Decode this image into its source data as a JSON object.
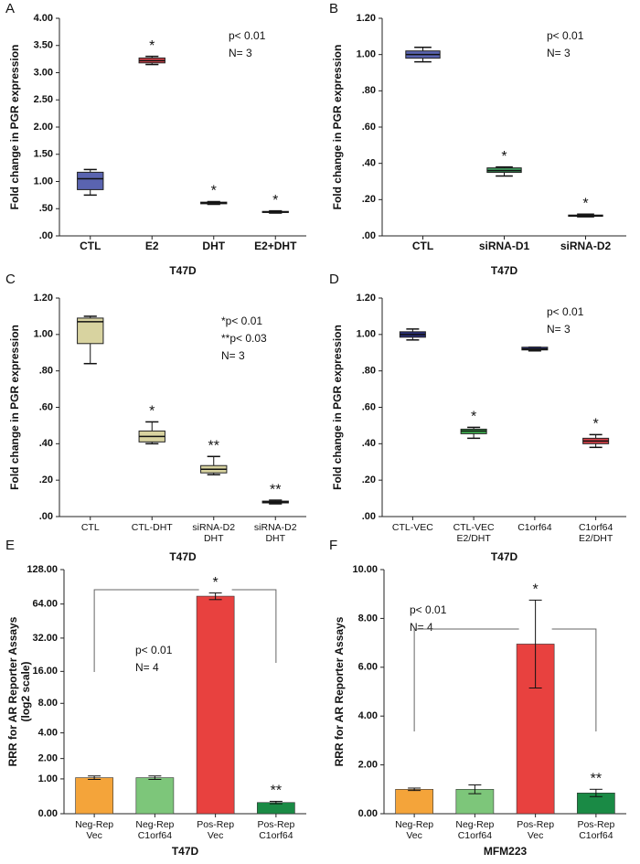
{
  "chart_data": [
    {
      "type": "box",
      "label": "A",
      "xlabel": "T47D",
      "ylabel": [
        "Fold change in PGR expression"
      ],
      "categories": [
        [
          "CTL"
        ],
        [
          "E2"
        ],
        [
          "DHT"
        ],
        [
          "E2+DHT"
        ]
      ],
      "boxes": [
        {
          "whislo": 0.75,
          "q1": 0.85,
          "med": 1.05,
          "q3": 1.17,
          "whishi": 1.22
        },
        {
          "whislo": 3.15,
          "q1": 3.18,
          "med": 3.22,
          "q3": 3.27,
          "whishi": 3.3
        },
        {
          "whislo": 0.58,
          "q1": 0.59,
          "med": 0.61,
          "q3": 0.62,
          "whishi": 0.63
        },
        {
          "whislo": 0.42,
          "q1": 0.43,
          "med": 0.44,
          "q3": 0.45,
          "whishi": 0.46
        }
      ],
      "colors": [
        "#5a64b0",
        "#d6424a",
        "#3f9a5e",
        "#333333"
      ],
      "significance": [
        null,
        "*",
        "*",
        "*"
      ],
      "annotations": [
        "p< 0.01",
        "N= 3"
      ],
      "ylim": [
        0,
        4
      ],
      "yticks": [
        {
          "value": 0,
          "label": ".00"
        },
        {
          "value": 0.5,
          "label": ".50"
        },
        {
          "value": 1,
          "label": "1.00"
        },
        {
          "value": 1.5,
          "label": "1.50"
        },
        {
          "value": 2,
          "label": "2.00"
        },
        {
          "value": 2.5,
          "label": "2.50"
        },
        {
          "value": 3,
          "label": "3.00"
        },
        {
          "value": 3.5,
          "label": "3.50"
        },
        {
          "value": 4,
          "label": "4.00"
        }
      ]
    },
    {
      "type": "box",
      "label": "B",
      "xlabel": "T47D",
      "ylabel": [
        "Fold change in PGR expression"
      ],
      "categories": [
        [
          "CTL"
        ],
        [
          "siRNA-D1"
        ],
        [
          "siRNA-D2"
        ]
      ],
      "boxes": [
        {
          "whislo": 0.96,
          "q1": 0.98,
          "med": 1.0,
          "q3": 1.02,
          "whishi": 1.04
        },
        {
          "whislo": 0.33,
          "q1": 0.35,
          "med": 0.36,
          "q3": 0.375,
          "whishi": 0.38
        },
        {
          "whislo": 0.105,
          "q1": 0.108,
          "med": 0.11,
          "q3": 0.115,
          "whishi": 0.12
        }
      ],
      "colors": [
        "#5a64b0",
        "#3f9a5e",
        "#333333"
      ],
      "significance": [
        null,
        "*",
        "*"
      ],
      "annotations": [
        "p< 0.01",
        "N= 3"
      ],
      "ylim": [
        0,
        1.2
      ],
      "yticks": [
        {
          "value": 0,
          "label": ".00"
        },
        {
          "value": 0.2,
          "label": ".20"
        },
        {
          "value": 0.4,
          "label": ".40"
        },
        {
          "value": 0.6,
          "label": ".60"
        },
        {
          "value": 0.8,
          "label": ".80"
        },
        {
          "value": 1,
          "label": "1.00"
        },
        {
          "value": 1.2,
          "label": "1.20"
        }
      ]
    },
    {
      "type": "box",
      "label": "C",
      "xlabel": "T47D",
      "ylabel": [
        "Fold change in PGR expression"
      ],
      "categories": [
        [
          "CTL"
        ],
        [
          "CTL-DHT"
        ],
        [
          "siRNA-D2",
          "DHT"
        ],
        [
          "siRNA-D2",
          "DHT"
        ]
      ],
      "boxes": [
        {
          "whislo": 0.84,
          "q1": 0.95,
          "med": 1.07,
          "q3": 1.09,
          "whishi": 1.1
        },
        {
          "whislo": 0.4,
          "q1": 0.41,
          "med": 0.44,
          "q3": 0.47,
          "whishi": 0.52
        },
        {
          "whislo": 0.23,
          "q1": 0.24,
          "med": 0.26,
          "q3": 0.28,
          "whishi": 0.33
        },
        {
          "whislo": 0.07,
          "q1": 0.075,
          "med": 0.08,
          "q3": 0.085,
          "whishi": 0.09
        }
      ],
      "colors": [
        "#d8d3a0",
        "#d8d3a0",
        "#d8d3a0",
        "#333333"
      ],
      "significance": [
        null,
        "*",
        "**",
        "**"
      ],
      "annotations": [
        "*p< 0.01",
        "**p< 0.03",
        "N= 3"
      ],
      "ylim": [
        0,
        1.2
      ],
      "yticks": [
        {
          "value": 0,
          "label": ".00"
        },
        {
          "value": 0.2,
          "label": ".20"
        },
        {
          "value": 0.4,
          "label": ".40"
        },
        {
          "value": 0.6,
          "label": ".60"
        },
        {
          "value": 0.8,
          "label": ".80"
        },
        {
          "value": 1,
          "label": "1.00"
        },
        {
          "value": 1.2,
          "label": "1.20"
        }
      ]
    },
    {
      "type": "box",
      "label": "D",
      "xlabel": "T47D",
      "ylabel": [
        "Fold change in PGR expression"
      ],
      "categories": [
        [
          "CTL-VEC"
        ],
        [
          "CTL-VEC",
          "E2/DHT"
        ],
        [
          "C1orf64"
        ],
        [
          "C1orf64",
          "E2/DHT"
        ]
      ],
      "boxes": [
        {
          "whislo": 0.97,
          "q1": 0.985,
          "med": 1.0,
          "q3": 1.015,
          "whishi": 1.03
        },
        {
          "whislo": 0.43,
          "q1": 0.455,
          "med": 0.47,
          "q3": 0.48,
          "whishi": 0.49
        },
        {
          "whislo": 0.91,
          "q1": 0.915,
          "med": 0.92,
          "q3": 0.93,
          "whishi": 0.93
        },
        {
          "whislo": 0.38,
          "q1": 0.4,
          "med": 0.415,
          "q3": 0.43,
          "whishi": 0.45
        }
      ],
      "colors": [
        "#2a2f7a",
        "#3fae4f",
        "#2a2f7a",
        "#d6424a"
      ],
      "significance": [
        null,
        "*",
        null,
        "*"
      ],
      "annotations": [
        "p< 0.01",
        "N= 3"
      ],
      "ylim": [
        0,
        1.2
      ],
      "yticks": [
        {
          "value": 0,
          "label": ".00"
        },
        {
          "value": 0.2,
          "label": ".20"
        },
        {
          "value": 0.4,
          "label": ".40"
        },
        {
          "value": 0.6,
          "label": ".60"
        },
        {
          "value": 0.8,
          "label": ".80"
        },
        {
          "value": 1,
          "label": "1.00"
        },
        {
          "value": 1.2,
          "label": "1.20"
        }
      ]
    },
    {
      "type": "bar",
      "label": "E",
      "xlabel": "T47D",
      "ylabel": [
        "RRR for AR Reporter Assays",
        "(log2 scale)"
      ],
      "categories": [
        [
          "Neg-Rep",
          "Vec"
        ],
        [
          "Neg-Rep",
          "C1orf64"
        ],
        [
          "Pos-Rep",
          "Vec"
        ],
        [
          "Pos-Rep",
          "C1orf64"
        ]
      ],
      "values": [
        1.05,
        1.05,
        75,
        0.25
      ],
      "errors": [
        0.07,
        0.07,
        5,
        0.03
      ],
      "colors": [
        "#f4a43a",
        "#7dc67a",
        "#e8413f",
        "#1a8a45"
      ],
      "significance": [
        null,
        null,
        "*",
        "**"
      ],
      "annotations": [
        "p< 0.01",
        "N= 4"
      ],
      "yscale": "log2",
      "ylim": [
        0,
        128
      ],
      "yticks": [
        {
          "value": 0,
          "label": "0.00"
        },
        {
          "value": 1,
          "label": "1.00"
        },
        {
          "value": 2,
          "label": "2.00"
        },
        {
          "value": 4,
          "label": "4.00"
        },
        {
          "value": 8,
          "label": "8.00"
        },
        {
          "value": 16,
          "label": "16.00"
        },
        {
          "value": 32,
          "label": "32.00"
        },
        {
          "value": 64,
          "label": "64.00"
        },
        {
          "value": 128,
          "label": "128.00"
        }
      ]
    },
    {
      "type": "bar",
      "label": "F",
      "xlabel": "MFM223",
      "ylabel": [
        "RRR for AR Reporter Assays"
      ],
      "categories": [
        [
          "Neg-Rep",
          "Vec"
        ],
        [
          "Neg-Rep",
          "C1orf64"
        ],
        [
          "Pos-Rep",
          "Vec"
        ],
        [
          "Pos-Rep",
          "C1orf64"
        ]
      ],
      "values": [
        1.0,
        1.0,
        6.95,
        0.85
      ],
      "errors": [
        0.05,
        0.18,
        1.8,
        0.15
      ],
      "colors": [
        "#f4a43a",
        "#7dc67a",
        "#e8413f",
        "#1a8a45"
      ],
      "significance": [
        null,
        null,
        "*",
        "**"
      ],
      "annotations": [
        "p< 0.01",
        "N= 4"
      ],
      "ylim": [
        0,
        10
      ],
      "yticks": [
        {
          "value": 0,
          "label": "0.00"
        },
        {
          "value": 2,
          "label": "2.00"
        },
        {
          "value": 4,
          "label": "4.00"
        },
        {
          "value": 6,
          "label": "6.00"
        },
        {
          "value": 8,
          "label": "8.00"
        },
        {
          "value": 10,
          "label": "10.00"
        }
      ]
    }
  ]
}
